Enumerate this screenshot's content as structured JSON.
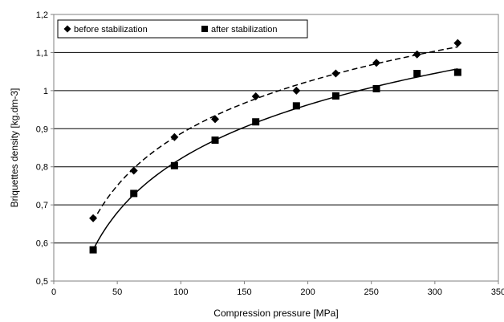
{
  "chart_data": {
    "type": "scatter",
    "title": "",
    "xlabel": "Compression pressure [MPa]",
    "ylabel": "Briquettes density [kg.dm-3]",
    "xlim": [
      0,
      350
    ],
    "ylim": [
      0.5,
      1.2
    ],
    "x_ticks": [
      "0",
      "50",
      "100",
      "150",
      "200",
      "250",
      "300",
      "350"
    ],
    "y_ticks": [
      "0,5",
      "0,6",
      "0,7",
      "0,8",
      "0,9",
      "1",
      "1,1",
      "1,2"
    ],
    "grid": "horizontal",
    "legend_position": "top-left",
    "series": [
      {
        "name": "before stabilization",
        "marker": "diamond",
        "trendline": "dashed",
        "x": [
          31,
          63,
          95,
          127,
          159,
          191,
          222,
          254,
          286,
          318
        ],
        "values": [
          0.665,
          0.79,
          0.878,
          0.925,
          0.985,
          1.0,
          1.045,
          1.073,
          1.095,
          1.125
        ]
      },
      {
        "name": "after stabilization",
        "marker": "square",
        "trendline": "solid",
        "x": [
          31,
          63,
          95,
          127,
          159,
          191,
          222,
          254,
          286,
          318
        ],
        "values": [
          0.582,
          0.73,
          0.803,
          0.87,
          0.918,
          0.96,
          0.986,
          1.005,
          1.045,
          1.048
        ]
      }
    ]
  }
}
